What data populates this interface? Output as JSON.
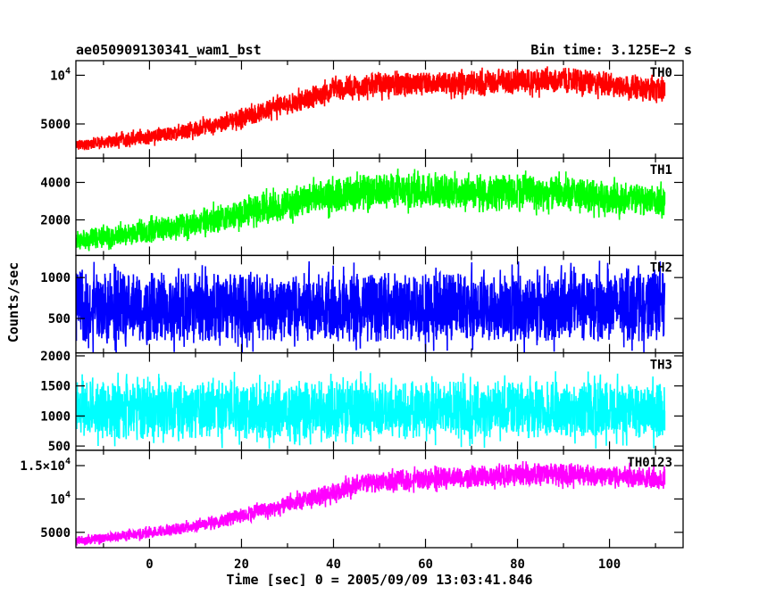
{
  "header": {
    "source": "ae050909130341_wam1_bst",
    "bin_time": "Bin time: 3.125E−2 s"
  },
  "chart_data": {
    "type": "line",
    "xlabel": "Time [sec] 0 = 2005/09/09 13:03:41.846",
    "ylabel": "Counts/sec",
    "xlim": [
      -16,
      116
    ],
    "x_range": [
      -16,
      112
    ],
    "x_ticks": [
      {
        "value": 0,
        "label": "0"
      },
      {
        "value": 20,
        "label": "20"
      },
      {
        "value": 40,
        "label": "40"
      },
      {
        "value": 60,
        "label": "60"
      },
      {
        "value": 80,
        "label": "80"
      },
      {
        "value": 100,
        "label": "100"
      }
    ],
    "panels": [
      {
        "name": "TH0",
        "color": "#ff0000",
        "ylim": [
          1500,
          11500
        ],
        "y_ticks": [
          {
            "value": 5000,
            "label": "5000"
          },
          {
            "value": 10000,
            "label": "10",
            "exp": "4"
          }
        ],
        "envelope": {
          "x": [
            -16,
            -5,
            5,
            15,
            25,
            35,
            40,
            43,
            50,
            60,
            70,
            80,
            90,
            100,
            112
          ],
          "center": [
            2800,
            3400,
            4000,
            5000,
            6300,
            7700,
            8500,
            8800,
            9000,
            9100,
            9200,
            9400,
            9500,
            9100,
            8400
          ],
          "half_width": [
            600,
            700,
            800,
            900,
            1000,
            1100,
            1150,
            1200,
            1200,
            1200,
            1250,
            1300,
            1300,
            1250,
            1200
          ]
        }
      },
      {
        "name": "TH1",
        "color": "#00ff00",
        "ylim": [
          100,
          5300
        ],
        "y_ticks": [
          {
            "value": 2000,
            "label": "2000"
          },
          {
            "value": 4000,
            "label": "4000"
          }
        ],
        "envelope": {
          "x": [
            -16,
            -5,
            5,
            15,
            25,
            35,
            45,
            55,
            65,
            75,
            85,
            95,
            105,
            112
          ],
          "center": [
            900,
            1200,
            1600,
            2100,
            2600,
            3100,
            3500,
            3550,
            3550,
            3500,
            3450,
            3300,
            3100,
            3000
          ],
          "half_width": [
            500,
            600,
            650,
            700,
            800,
            900,
            950,
            950,
            950,
            950,
            950,
            900,
            850,
            800
          ]
        }
      },
      {
        "name": "TH2",
        "color": "#0000ff",
        "ylim": [
          80,
          1270
        ],
        "y_ticks": [
          {
            "value": 500,
            "label": "500"
          },
          {
            "value": 1000,
            "label": "1000"
          }
        ],
        "envelope": {
          "x": [
            -16,
            112
          ],
          "center": [
            640,
            640
          ],
          "half_width": [
            420,
            420
          ]
        }
      },
      {
        "name": "TH3",
        "color": "#00ffff",
        "ylim": [
          430,
          2050
        ],
        "y_ticks": [
          {
            "value": 500,
            "label": "500"
          },
          {
            "value": 1000,
            "label": "1000"
          },
          {
            "value": 1500,
            "label": "1500"
          },
          {
            "value": 2000,
            "label": "2000"
          }
        ],
        "envelope": {
          "x": [
            -16,
            112
          ],
          "center": [
            1100,
            1100
          ],
          "half_width": [
            480,
            480
          ]
        }
      },
      {
        "name": "TH0123",
        "color": "#ff00ff",
        "ylim": [
          2700,
          17300
        ],
        "y_ticks": [
          {
            "value": 5000,
            "label": "5000"
          },
          {
            "value": 10000,
            "label": "10",
            "exp": "4"
          },
          {
            "value": 15000,
            "label": "1.5×10",
            "exp": "4"
          }
        ],
        "envelope": {
          "x": [
            -16,
            -5,
            5,
            15,
            25,
            35,
            40,
            45,
            55,
            65,
            75,
            85,
            95,
            105,
            112
          ],
          "center": [
            3700,
            4500,
            5400,
            6700,
            8300,
            10000,
            11000,
            12200,
            12800,
            13200,
            13500,
            13800,
            13600,
            13300,
            13000
          ],
          "half_width": [
            700,
            800,
            900,
            1000,
            1200,
            1400,
            1450,
            1500,
            1500,
            1550,
            1600,
            1650,
            1650,
            1600,
            1600
          ]
        }
      }
    ]
  }
}
